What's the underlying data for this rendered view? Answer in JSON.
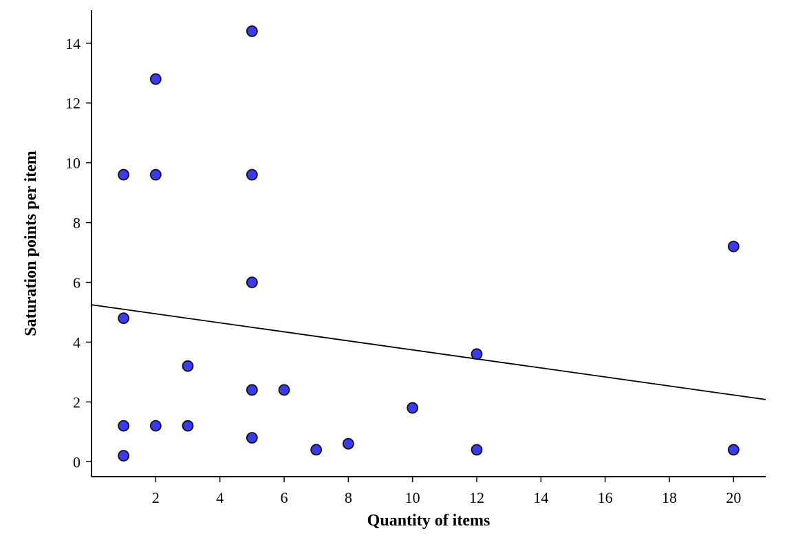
{
  "chart_data": {
    "type": "scatter",
    "title": "",
    "xlabel": "Quantity of items",
    "ylabel": "Saturation points per item",
    "xlim": [
      0,
      21
    ],
    "ylim": [
      -0.5,
      15.1
    ],
    "x_ticks": [
      2,
      4,
      6,
      8,
      10,
      12,
      14,
      16,
      18,
      20
    ],
    "y_ticks": [
      0,
      2,
      4,
      6,
      8,
      10,
      12,
      14
    ],
    "grid": false,
    "colors": {
      "marker_fill": "#3a3af0",
      "marker_stroke": "#111111",
      "trend_line": "#000000",
      "axis": "#000000"
    },
    "points": [
      {
        "x": 1,
        "y": 9.6
      },
      {
        "x": 1,
        "y": 4.8
      },
      {
        "x": 1,
        "y": 1.2
      },
      {
        "x": 1,
        "y": 0.2
      },
      {
        "x": 2,
        "y": 12.8
      },
      {
        "x": 2,
        "y": 9.6
      },
      {
        "x": 2,
        "y": 1.2
      },
      {
        "x": 3,
        "y": 3.2
      },
      {
        "x": 3,
        "y": 1.2
      },
      {
        "x": 5,
        "y": 14.4
      },
      {
        "x": 5,
        "y": 9.6
      },
      {
        "x": 5,
        "y": 6.0
      },
      {
        "x": 5,
        "y": 2.4
      },
      {
        "x": 5,
        "y": 0.8
      },
      {
        "x": 6,
        "y": 2.4
      },
      {
        "x": 7,
        "y": 0.4
      },
      {
        "x": 8,
        "y": 0.6
      },
      {
        "x": 10,
        "y": 1.8
      },
      {
        "x": 12,
        "y": 3.6
      },
      {
        "x": 12,
        "y": 0.4
      },
      {
        "x": 20,
        "y": 7.2
      },
      {
        "x": 20,
        "y": 0.4
      }
    ],
    "trend_line": {
      "x": [
        0,
        21
      ],
      "y": [
        5.25,
        2.08
      ]
    }
  }
}
